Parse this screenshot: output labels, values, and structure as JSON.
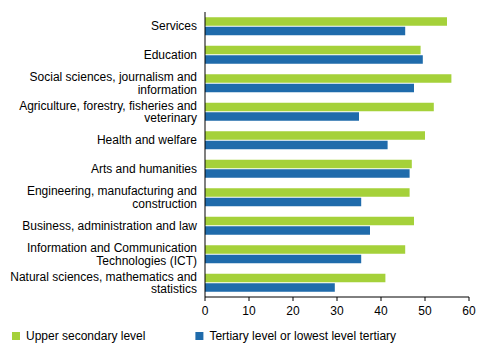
{
  "chart_data": {
    "type": "bar",
    "orientation": "horizontal",
    "categories": [
      "Services",
      "Education",
      "Social sciences, journalism and information",
      "Agriculture, forestry, fisheries and veterinary",
      "Health and welfare",
      "Arts and humanities",
      "Engineering, manufacturing and construction",
      "Business, administration and law",
      "Information and Communication Technologies (ICT)",
      "Natural sciences, mathematics and statistics"
    ],
    "series": [
      {
        "name": "Upper secondary level",
        "color": "#a5d13a",
        "values": [
          55,
          49,
          56,
          52,
          50,
          47,
          46.5,
          47.5,
          45.5,
          41
        ]
      },
      {
        "name": "Tertiary level or lowest level tertiary",
        "color": "#1f6bab",
        "values": [
          45.5,
          49.5,
          47.5,
          35,
          41.5,
          46.5,
          35.5,
          37.5,
          35.5,
          29.5
        ]
      }
    ],
    "xlim": [
      0,
      60
    ],
    "xticks": [
      0,
      10,
      20,
      30,
      40,
      50,
      60
    ],
    "grid": false,
    "legend": "bottom"
  }
}
